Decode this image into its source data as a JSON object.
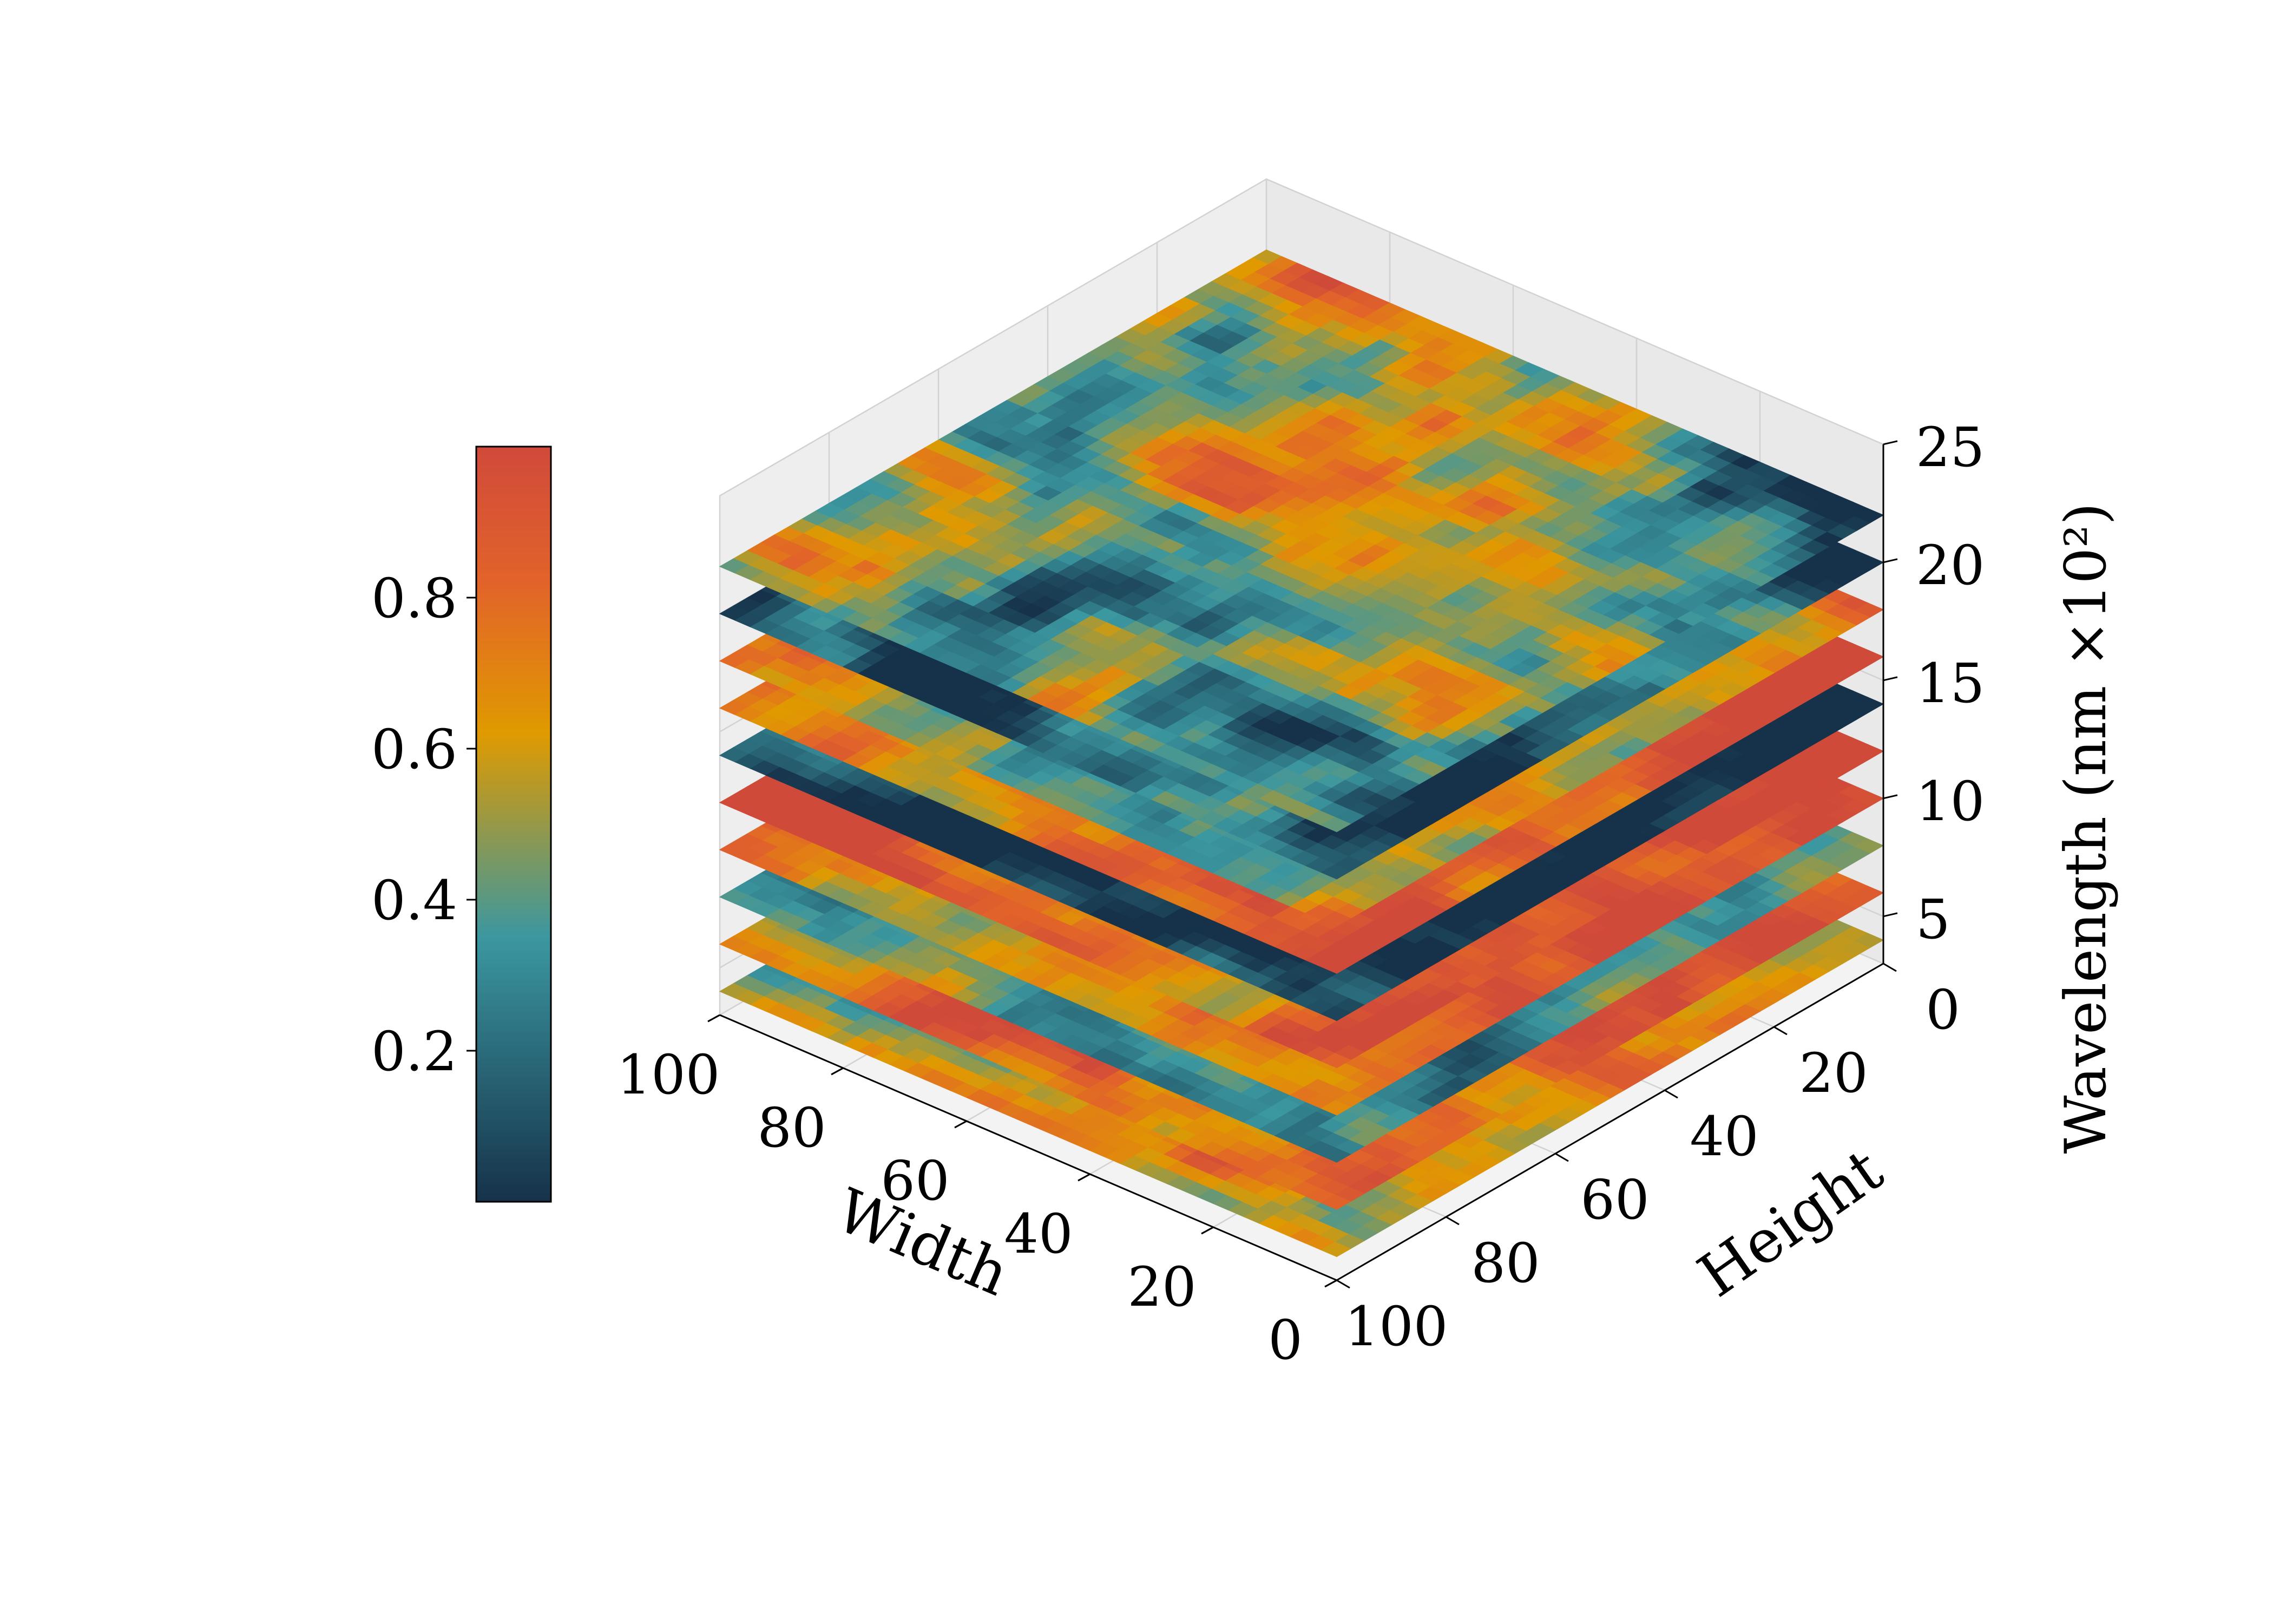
{
  "chart_data": {
    "type": "heatmap",
    "subtype": "stacked-3d-slices",
    "title": "",
    "xlabel": "Width",
    "ylabel": "Height",
    "zlabel": "Wavelength (nm ×10²)",
    "xlim": [
      0,
      100
    ],
    "ylim": [
      0,
      100
    ],
    "zlim": [
      3,
      25
    ],
    "x_ticks": [
      "0",
      "20",
      "40",
      "60",
      "80",
      "100"
    ],
    "y_ticks": [
      "0",
      "20",
      "40",
      "60",
      "80",
      "100"
    ],
    "z_ticks": [
      "5",
      "10",
      "15",
      "20",
      "25"
    ],
    "grid": true,
    "grid_resolution": 40,
    "slice_wavelengths": [
      4,
      6,
      8,
      10,
      12,
      14,
      16,
      18,
      20,
      22
    ],
    "slice_dominant_values": [
      0.55,
      0.72,
      0.4,
      0.8,
      0.9,
      0.1,
      0.9,
      0.65,
      0.1,
      0.38
    ],
    "colorbar": {
      "ticks": [
        "0.2",
        "0.4",
        "0.6",
        "0.8"
      ],
      "tick_values": [
        0.2,
        0.4,
        0.6,
        0.8
      ],
      "vmin": 0.0,
      "vmax": 1.0,
      "colors": [
        "#16324a",
        "#3b97a0",
        "#e09a00",
        "#e2632a",
        "#d04a3a"
      ]
    }
  }
}
